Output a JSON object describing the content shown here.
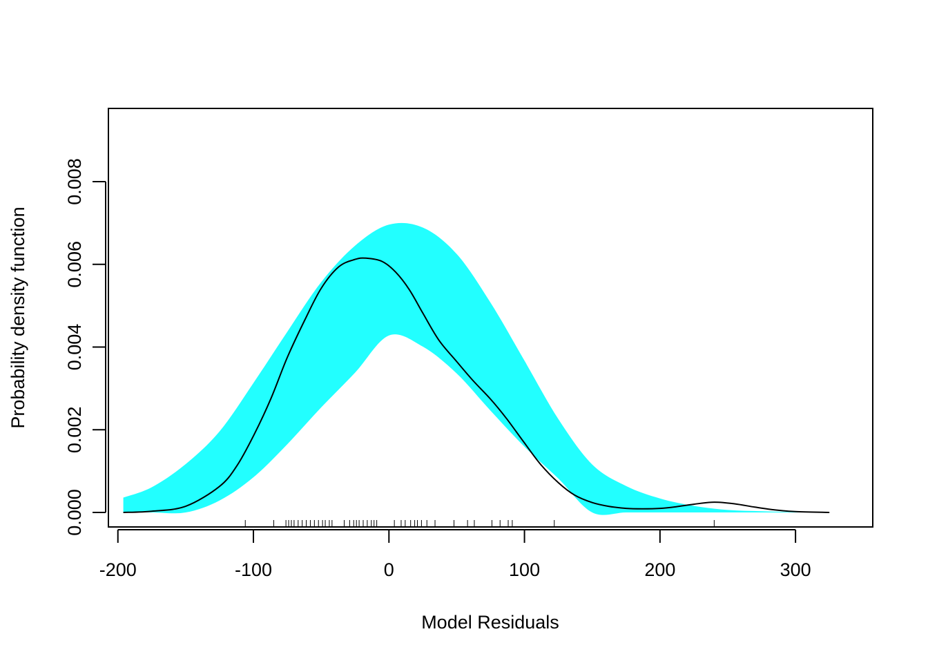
{
  "chart_data": {
    "type": "line",
    "title": "",
    "xlabel": "Model Residuals",
    "ylabel": "Probability density function",
    "xlim": [
      -207,
      357
    ],
    "ylim": [
      -0.00035,
      0.00977
    ],
    "x_ticks": [
      -200,
      -100,
      0,
      100,
      200,
      300
    ],
    "x_tick_labels": [
      "-200",
      "-100",
      "0",
      "100",
      "200",
      "300"
    ],
    "y_ticks": [
      0,
      0.002,
      0.004,
      0.006,
      0.008
    ],
    "y_tick_labels": [
      "0.000",
      "0.002",
      "0.004",
      "0.006",
      "0.008"
    ],
    "grid": false,
    "band_color": "#22FFFF",
    "line_color": "#000000",
    "band": {
      "name": "",
      "x": [
        -196,
        -175,
        -150,
        -125,
        -100,
        -75,
        -50,
        -25,
        0,
        25,
        50,
        75,
        100,
        125,
        150,
        175,
        200,
        225,
        250,
        275,
        300,
        325
      ],
      "lower": [
        0.0,
        0.0,
        0.0,
        0.00029,
        0.00085,
        0.00165,
        0.00254,
        0.00338,
        0.00428,
        0.00401,
        0.00336,
        0.00246,
        0.00159,
        0.00082,
        0.0,
        0.0,
        0.0,
        0.0,
        0.0,
        0.0,
        0.0,
        0.0
      ],
      "upper": [
        0.00036,
        0.00061,
        0.00117,
        0.00196,
        0.00313,
        0.00437,
        0.00557,
        0.00645,
        0.00696,
        0.00689,
        0.00625,
        0.00507,
        0.00367,
        0.00226,
        0.00116,
        0.00064,
        0.00034,
        0.00016,
        6e-05,
        3e-05,
        1e-05,
        0.0
      ]
    },
    "series": [
      {
        "name": "",
        "x": [
          -196,
          -175,
          -150,
          -125,
          -112,
          -100,
          -87,
          -75,
          -62,
          -50,
          -37,
          -25,
          -17,
          -5,
          5,
          15,
          25,
          37,
          50,
          62,
          75,
          87,
          100,
          112,
          125,
          137,
          150,
          162,
          175,
          187,
          200,
          212,
          225,
          240,
          255,
          270,
          285,
          300,
          325
        ],
        "y": [
          0.0,
          3e-05,
          0.00015,
          0.00063,
          0.00114,
          0.00185,
          0.00276,
          0.00375,
          0.00466,
          0.00542,
          0.00594,
          0.00612,
          0.00615,
          0.00607,
          0.00581,
          0.00539,
          0.00482,
          0.00416,
          0.00365,
          0.00319,
          0.00274,
          0.00226,
          0.00168,
          0.00116,
          0.00072,
          0.00042,
          0.00024,
          0.00015,
          0.0001,
          9e-05,
          0.0001,
          0.00014,
          0.0002,
          0.00025,
          0.00021,
          0.00013,
          6e-05,
          2e-05,
          0.0
        ]
      }
    ],
    "rug": [
      -106,
      -85,
      -76,
      -74,
      -72,
      -70,
      -67,
      -64,
      -61,
      -58,
      -55,
      -52,
      -49,
      -47,
      -44,
      -42,
      -33,
      -29,
      -26,
      -24,
      -22,
      -19,
      -16,
      -13,
      -11,
      -9,
      4,
      9,
      12,
      16,
      19,
      21,
      24,
      28,
      34,
      48,
      58,
      63,
      76,
      82,
      88,
      91,
      122,
      240
    ]
  }
}
